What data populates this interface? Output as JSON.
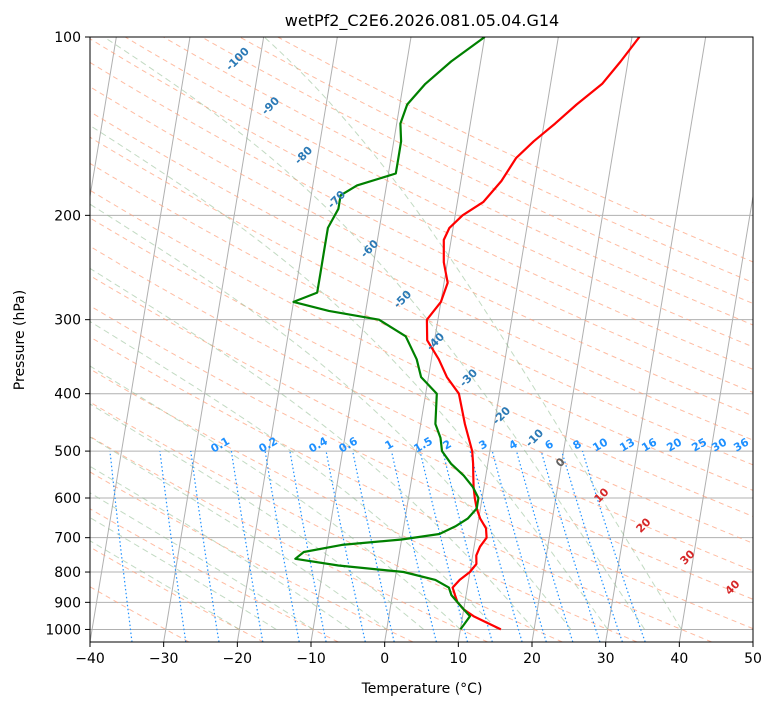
{
  "chart_data": {
    "type": "line",
    "title": "wetPf2_C2E6.2026.081.05.04.G14",
    "xlabel": "Temperature (°C)",
    "ylabel": "Pressure (hPa)",
    "xlim": [
      -40,
      50
    ],
    "ylim": [
      1050,
      100
    ],
    "y_scale": "log",
    "grid": true,
    "x_ticks": [
      -40,
      -30,
      -20,
      -10,
      0,
      10,
      20,
      30,
      40,
      50
    ],
    "y_ticks": [
      100,
      200,
      300,
      400,
      500,
      600,
      700,
      800,
      900,
      1000
    ],
    "series": [
      {
        "color": "#ff0000",
        "points": [
          [
            15.5,
            1000
          ],
          [
            13.5,
            975
          ],
          [
            11.5,
            950
          ],
          [
            10,
            925
          ],
          [
            9,
            900
          ],
          [
            8.5,
            875
          ],
          [
            8,
            850
          ],
          [
            8.8,
            825
          ],
          [
            10,
            800
          ],
          [
            10.7,
            775
          ],
          [
            10.5,
            750
          ],
          [
            10.8,
            725
          ],
          [
            11.5,
            700
          ],
          [
            11.2,
            675
          ],
          [
            10.2,
            650
          ],
          [
            9.5,
            625
          ],
          [
            9,
            600
          ],
          [
            8.6,
            575
          ],
          [
            8.3,
            550
          ],
          [
            8,
            525
          ],
          [
            7.6,
            500
          ],
          [
            6,
            450
          ],
          [
            4.5,
            400
          ],
          [
            2.5,
            375
          ],
          [
            1,
            350
          ],
          [
            -1,
            325
          ],
          [
            -1.5,
            300
          ],
          [
            0,
            280
          ],
          [
            0.5,
            260
          ],
          [
            -0.5,
            240
          ],
          [
            -1,
            220
          ],
          [
            -0.5,
            210
          ],
          [
            1,
            200
          ],
          [
            3.5,
            190
          ],
          [
            5.5,
            175
          ],
          [
            7,
            160
          ],
          [
            9,
            150
          ],
          [
            11.5,
            140
          ],
          [
            14,
            130
          ],
          [
            17,
            120
          ],
          [
            19,
            110
          ],
          [
            21,
            100
          ]
        ]
      },
      {
        "color": "#008000",
        "points": [
          [
            10,
            1000
          ],
          [
            10.5,
            975
          ],
          [
            11,
            950
          ],
          [
            10,
            925
          ],
          [
            8,
            875
          ],
          [
            7.5,
            850
          ],
          [
            5.5,
            825
          ],
          [
            1,
            800
          ],
          [
            -8,
            780
          ],
          [
            -14,
            760
          ],
          [
            -13,
            740
          ],
          [
            -8,
            720
          ],
          [
            0,
            705
          ],
          [
            5,
            690
          ],
          [
            7,
            670
          ],
          [
            8.5,
            650
          ],
          [
            9.5,
            625
          ],
          [
            9.5,
            600
          ],
          [
            8.5,
            575
          ],
          [
            7,
            550
          ],
          [
            5,
            525
          ],
          [
            3.5,
            500
          ],
          [
            3,
            475
          ],
          [
            2,
            450
          ],
          [
            1.5,
            400
          ],
          [
            -1,
            375
          ],
          [
            -2,
            350
          ],
          [
            -4,
            320
          ],
          [
            -8,
            300
          ],
          [
            -15,
            290
          ],
          [
            -20,
            280
          ],
          [
            -17,
            270
          ],
          [
            -17,
            250
          ],
          [
            -17,
            230
          ],
          [
            -17,
            210
          ],
          [
            -16,
            195
          ],
          [
            -16,
            185
          ],
          [
            -14,
            178
          ],
          [
            -9,
            170
          ],
          [
            -9,
            160
          ],
          [
            -9,
            150
          ],
          [
            -9.5,
            140
          ],
          [
            -9,
            130
          ],
          [
            -7,
            120
          ],
          [
            -4,
            110
          ],
          [
            0,
            100
          ]
        ]
      }
    ],
    "dry_adiabats": [
      -100,
      -90,
      -80,
      -70,
      -60,
      -50,
      -40,
      -30,
      -20,
      -10
    ],
    "moist_adiabats": [
      0,
      10,
      20,
      30,
      40
    ],
    "mixing_ratios": [
      "0.1",
      "0.2",
      "0.4",
      "0.6",
      "1",
      "1.5",
      "2",
      "3",
      "4",
      "6",
      "8",
      "10",
      "13",
      "16",
      "20",
      "25",
      "30",
      "36"
    ],
    "colors": {
      "temperature": "#ff0000",
      "dewpoint": "#008000",
      "dry_adiabat": "#2c7ab6",
      "moist_adiabat": "#d62728",
      "mixing_ratio": "#1e90ff",
      "isotherm": "#808080"
    }
  }
}
